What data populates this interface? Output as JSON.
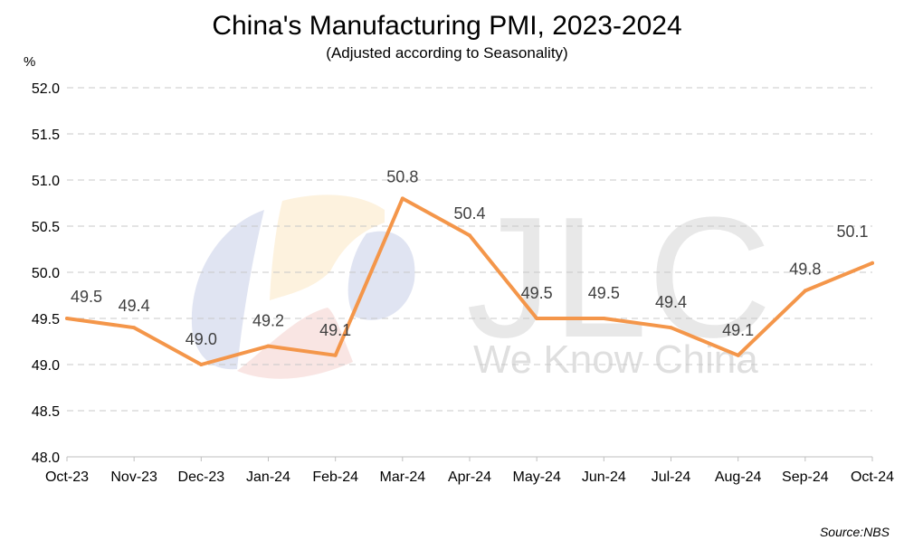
{
  "chart_data": {
    "type": "line",
    "title": "China's Manufacturing PMI, 2023-2024",
    "subtitle": "(Adjusted according to Seasonality)",
    "ylabel": "%",
    "xlabel": "",
    "categories": [
      "Oct-23",
      "Nov-23",
      "Dec-23",
      "Jan-24",
      "Feb-24",
      "Mar-24",
      "Apr-24",
      "May-24",
      "Jun-24",
      "Jul-24",
      "Aug-24",
      "Sep-24",
      "Oct-24"
    ],
    "series": [
      {
        "values": [
          49.5,
          49.4,
          49.0,
          49.2,
          49.1,
          50.8,
          50.4,
          49.5,
          49.5,
          49.4,
          49.1,
          49.8,
          50.1
        ],
        "labels": [
          "49.5",
          "49.4",
          "49.0",
          "49.2",
          "49.1",
          "50.8",
          "50.4",
          "49.5",
          "49.5",
          "49.4",
          "49.1",
          "49.8",
          "50.1"
        ],
        "color": "#f4964a"
      }
    ],
    "ylim": [
      48.0,
      52.0
    ],
    "yticks": [
      "48.0",
      "48.5",
      "49.0",
      "49.5",
      "50.0",
      "50.5",
      "51.0",
      "51.5",
      "52.0"
    ],
    "grid": "horizontal dashed",
    "legend": "none",
    "source": "Source:NBS"
  },
  "watermark": {
    "text_big": "JLC",
    "text_small": "We Know China"
  },
  "colors": {
    "line": "#f4964a",
    "grid": "#c8c8c8",
    "axis": "#bfbfbf"
  }
}
